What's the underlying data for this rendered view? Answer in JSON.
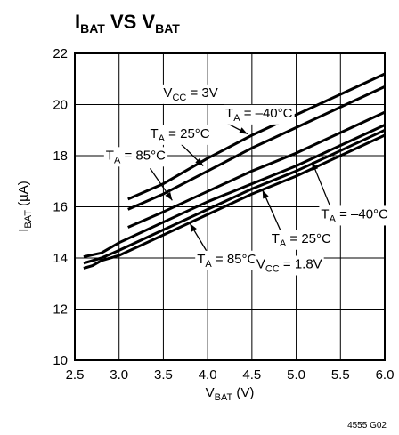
{
  "chart_data": {
    "type": "line",
    "title": "I_BAT VS V_BAT",
    "title_main_1": "I",
    "title_sub_1": "BAT",
    "title_mid": " VS V",
    "title_sub_2": "BAT",
    "xlabel_main": "V",
    "xlabel_sub": "BAT",
    "xlabel_unit": " (V)",
    "ylabel_main": "I",
    "ylabel_sub": "BAT",
    "ylabel_unit": " (µA)",
    "xlim": [
      2.5,
      6.0
    ],
    "ylim": [
      10,
      22
    ],
    "x_ticks": [
      "2.5",
      "3.0",
      "3.5",
      "4.0",
      "4.5",
      "5.0",
      "5.5",
      "6.0"
    ],
    "x_tick_values": [
      2.5,
      3.0,
      3.5,
      4.0,
      4.5,
      5.0,
      5.5,
      6.0
    ],
    "y_ticks": [
      "10",
      "12",
      "14",
      "16",
      "18",
      "20",
      "22"
    ],
    "y_tick_values": [
      10,
      12,
      14,
      16,
      18,
      20,
      22
    ],
    "grid": true,
    "figure_ref": "4555 G02",
    "series": [
      {
        "x": [
          3.1,
          3.5,
          4.0,
          4.5,
          5.0,
          5.5,
          6.0
        ],
        "y": [
          16.3,
          16.9,
          17.9,
          18.8,
          19.6,
          20.4,
          21.2
        ]
      },
      {
        "x": [
          3.1,
          3.5,
          4.0,
          4.5,
          5.0,
          5.5,
          6.0
        ],
        "y": [
          15.9,
          16.5,
          17.4,
          18.3,
          19.1,
          19.9,
          20.7
        ]
      },
      {
        "x": [
          3.1,
          3.5,
          4.0,
          4.5,
          5.0,
          5.5,
          6.0
        ],
        "y": [
          15.2,
          15.8,
          16.6,
          17.4,
          18.1,
          18.9,
          19.7
        ]
      },
      {
        "x": [
          2.6,
          2.8,
          3.0,
          3.5,
          4.0,
          4.5,
          5.0,
          5.5,
          6.0
        ],
        "y": [
          14.05,
          14.2,
          14.6,
          15.4,
          16.2,
          16.9,
          17.6,
          18.4,
          19.2
        ]
      },
      {
        "x": [
          2.6,
          2.8,
          3.0,
          3.5,
          4.0,
          4.5,
          5.0,
          5.5,
          6.0
        ],
        "y": [
          13.8,
          14.0,
          14.3,
          15.1,
          15.9,
          16.7,
          17.4,
          18.2,
          19.0
        ]
      },
      {
        "x": [
          2.6,
          2.7,
          2.8,
          3.0,
          3.5,
          4.0,
          4.5,
          5.0,
          5.5,
          6.0
        ],
        "y": [
          13.6,
          13.7,
          13.9,
          14.1,
          14.9,
          15.7,
          16.5,
          17.2,
          18.0,
          18.8
        ]
      }
    ],
    "annotations": [
      {
        "main": "V",
        "sub": "CC",
        "rest": " = 3V",
        "x": 3.5,
        "y": 20.3
      },
      {
        "main": "T",
        "sub": "A",
        "rest": " = –40°C",
        "x": 4.2,
        "y": 19.5
      },
      {
        "main": "T",
        "sub": "A",
        "rest": " = 25°C",
        "x": 3.35,
        "y": 18.7
      },
      {
        "main": "T",
        "sub": "A",
        "rest": " = 85°C",
        "x": 2.85,
        "y": 17.85
      },
      {
        "main": "T",
        "sub": "A",
        "rest": " = –40°C",
        "x": 5.28,
        "y": 15.55
      },
      {
        "main": "T",
        "sub": "A",
        "rest": " = 25°C",
        "x": 4.72,
        "y": 14.6
      },
      {
        "main": "T",
        "sub": "A",
        "rest": " = 85°C",
        "x": 3.88,
        "y": 13.8
      },
      {
        "main": "V",
        "sub": "CC",
        "rest": " = 1.8V",
        "x": 4.55,
        "y": 13.6
      }
    ],
    "pointers": [
      {
        "from": [
          4.2,
          19.3
        ],
        "to": [
          4.45,
          18.85
        ]
      },
      {
        "from": [
          3.7,
          18.45
        ],
        "to": [
          3.95,
          17.6
        ]
      },
      {
        "from": [
          3.35,
          17.5
        ],
        "to": [
          3.6,
          16.25
        ]
      },
      {
        "from": [
          5.38,
          16.05
        ],
        "to": [
          5.18,
          17.75
        ]
      },
      {
        "from": [
          4.82,
          15.1
        ],
        "to": [
          4.62,
          16.65
        ]
      },
      {
        "from": [
          4.0,
          14.2
        ],
        "to": [
          3.8,
          15.35
        ]
      }
    ]
  }
}
